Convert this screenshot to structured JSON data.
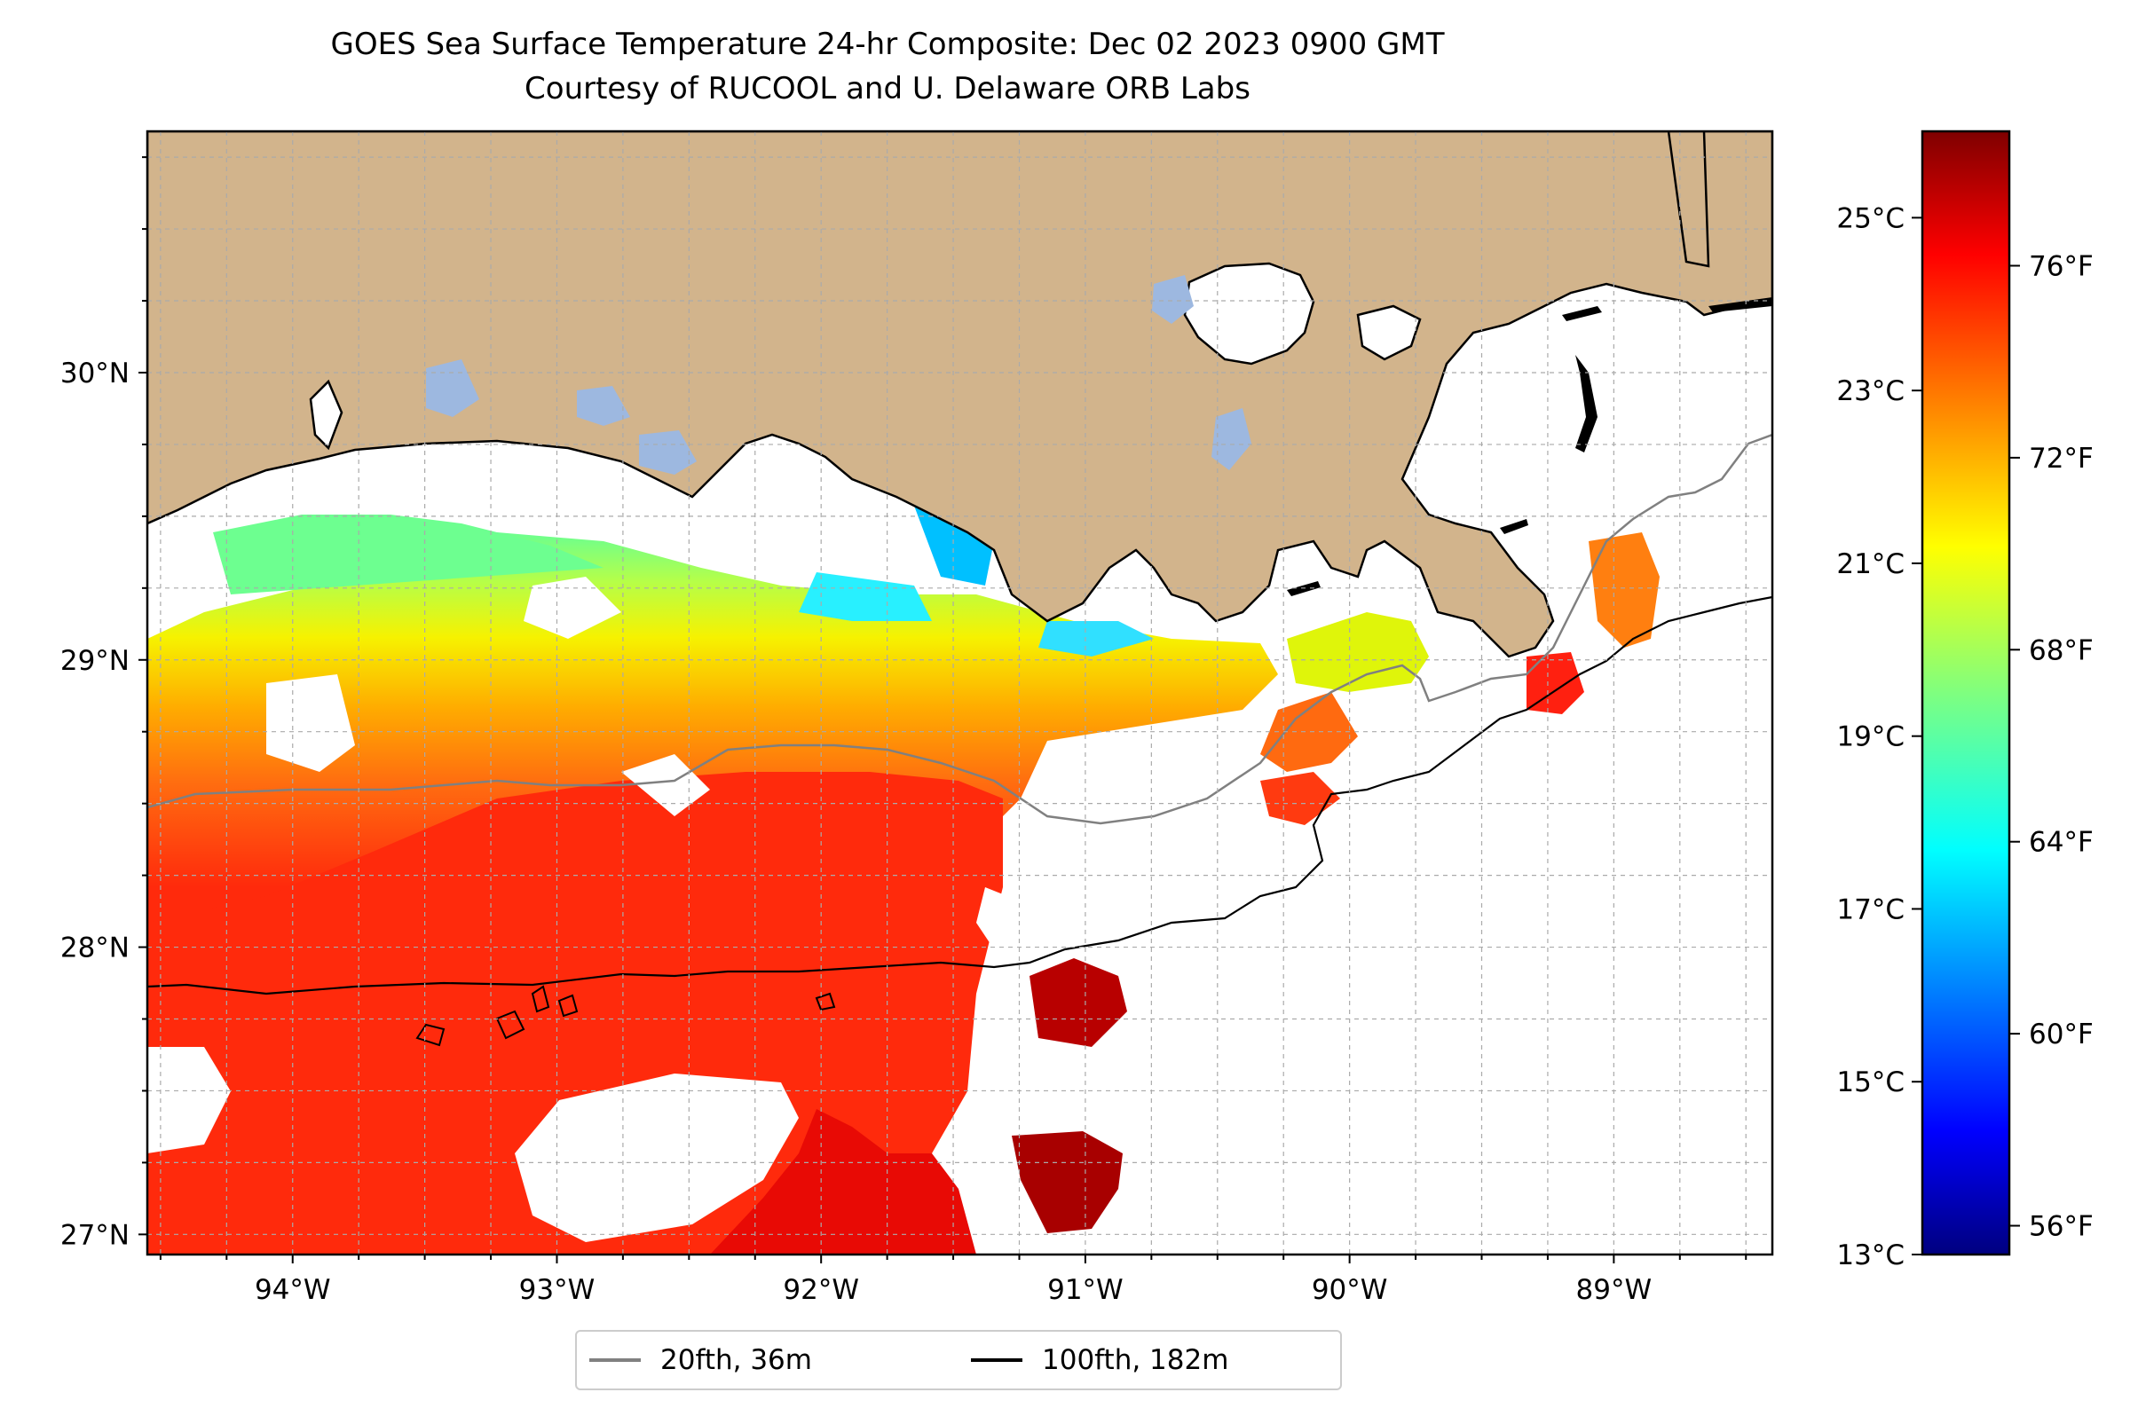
{
  "title_line1": "GOES Sea Surface Temperature 24-hr Composite: Dec 02 2023 0900 GMT",
  "title_line2": "Courtesy of RUCOOL and U. Delaware ORB Labs",
  "map": {
    "lon_range": [
      -94.55,
      -88.4
    ],
    "lat_range": [
      26.93,
      30.84
    ],
    "lon_ticks": [
      {
        "value": -94,
        "label": "94°W"
      },
      {
        "value": -93,
        "label": "93°W"
      },
      {
        "value": -92,
        "label": "92°W"
      },
      {
        "value": -91,
        "label": "91°W"
      },
      {
        "value": -90,
        "label": "90°W"
      },
      {
        "value": -89,
        "label": "89°W"
      }
    ],
    "lat_ticks": [
      {
        "value": 27,
        "label": "27°N"
      },
      {
        "value": 28,
        "label": "28°N"
      },
      {
        "value": 29,
        "label": "29°N"
      },
      {
        "value": 30,
        "label": "30°N"
      }
    ],
    "land_color": "#d2b48c",
    "water_color": "#ffffff",
    "gridlines": true
  },
  "colorbar": {
    "colormap": "jet",
    "celsius_range": [
      13,
      26
    ],
    "celsius_ticks": [
      {
        "value": 13,
        "label": "13°C"
      },
      {
        "value": 15,
        "label": "15°C"
      },
      {
        "value": 17,
        "label": "17°C"
      },
      {
        "value": 19,
        "label": "19°C"
      },
      {
        "value": 21,
        "label": "21°C"
      },
      {
        "value": 23,
        "label": "23°C"
      },
      {
        "value": 25,
        "label": "25°C"
      }
    ],
    "fahrenheit_ticks": [
      {
        "value": 56,
        "label": "56°F"
      },
      {
        "value": 60,
        "label": "60°F"
      },
      {
        "value": 64,
        "label": "64°F"
      },
      {
        "value": 68,
        "label": "68°F"
      },
      {
        "value": 72,
        "label": "72°F"
      },
      {
        "value": 76,
        "label": "76°F"
      }
    ]
  },
  "legend": [
    {
      "label": "20fth, 36m",
      "color": "#808080"
    },
    {
      "label": "100fth, 182m",
      "color": "#000000"
    }
  ]
}
